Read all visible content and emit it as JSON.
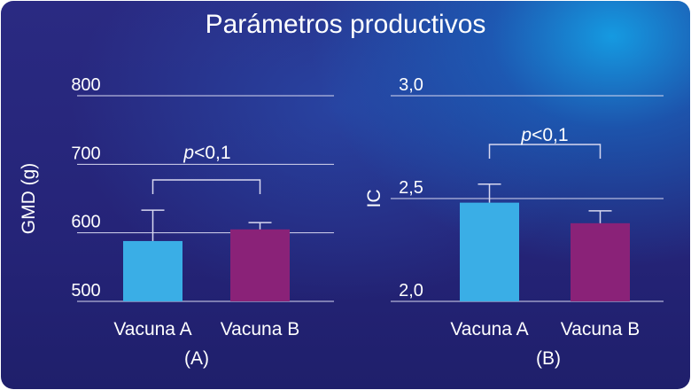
{
  "title": "Parámetros productivos",
  "colors": {
    "vacuna_a": "#3aaee6",
    "vacuna_b": "#8a2278",
    "gridline": "#d8d8f0",
    "text": "#ffffff"
  },
  "chart_data": [
    {
      "type": "bar",
      "panel_label": "(A)",
      "ylabel": "GMD (g)",
      "categories": [
        "Vacuna A",
        "Vacuna B"
      ],
      "values": [
        588,
        605
      ],
      "error_upper": [
        633,
        615
      ],
      "ylim": [
        500,
        800
      ],
      "yticks": [
        500,
        600,
        700,
        800
      ],
      "ytick_labels": [
        "500",
        "600",
        "700",
        "800"
      ],
      "significance": {
        "p_letter": "p",
        "p_rest": "<0,1"
      },
      "grid": true
    },
    {
      "type": "bar",
      "panel_label": "(B)",
      "ylabel": "IC",
      "categories": [
        "Vacuna A",
        "Vacuna B"
      ],
      "values": [
        2.48,
        2.38
      ],
      "error_upper": [
        2.57,
        2.44
      ],
      "ylim": [
        2.0,
        3.0
      ],
      "yticks": [
        2.0,
        2.5,
        3.0
      ],
      "ytick_labels": [
        "2,0",
        "2,5",
        "3,0"
      ],
      "significance": {
        "p_letter": "p",
        "p_rest": "<0,1"
      },
      "grid": true
    }
  ]
}
